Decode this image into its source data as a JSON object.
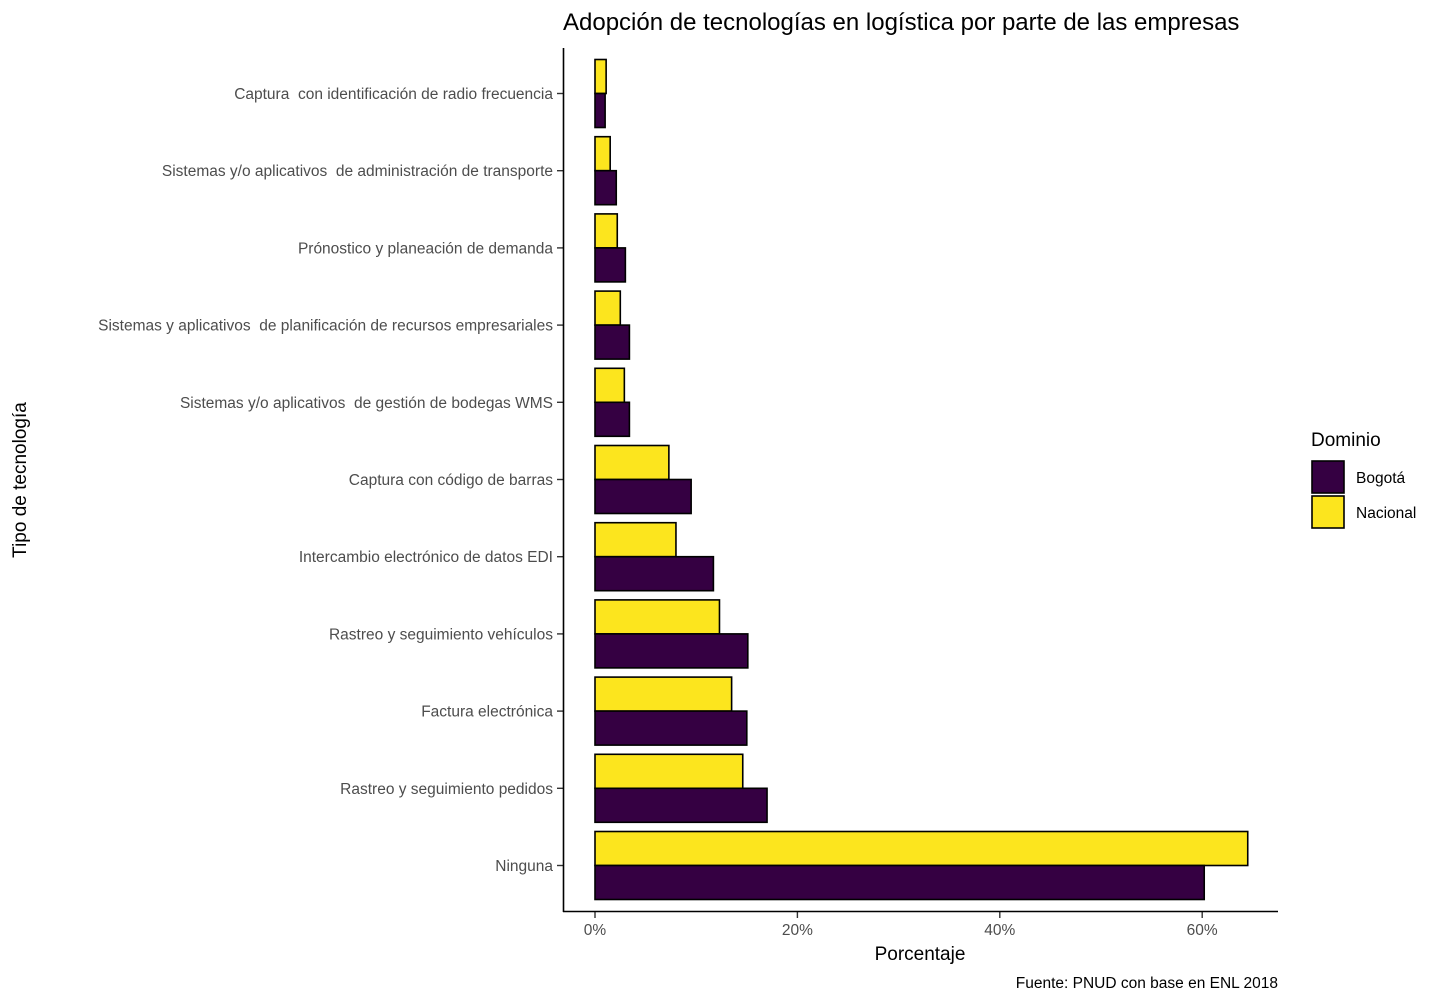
{
  "chart_data": {
    "type": "bar",
    "orientation": "horizontal",
    "title": "Adopción de tecnologías en logística por parte de las empresas",
    "xlabel": "Porcentaje",
    "ylabel": "Tipo de tecnología",
    "caption": "Fuente: PNUD con base en ENL 2018",
    "xlim": [
      0,
      67.5
    ],
    "x_ticks": [
      0,
      20,
      40,
      60
    ],
    "x_tick_labels": [
      "0%",
      "20%",
      "40%",
      "60%"
    ],
    "grid": false,
    "legend": {
      "title": "Dominio",
      "position": "right",
      "entries": [
        "Bogotá",
        "Nacional"
      ]
    },
    "categories": [
      "Captura  con identificación de radio frecuencia",
      "Sistemas y/o aplicativos  de administración de transporte",
      "Prónostico y planeación de demanda",
      "Sistemas y aplicativos  de planificación de recursos empresariales",
      "Sistemas y/o aplicativos  de gestión de bodegas WMS",
      "Captura con código de barras",
      "Intercambio electrónico de datos EDI",
      "Rastreo y seguimiento vehículos",
      "Factura electrónica",
      "Rastreo y seguimiento pedidos",
      "Ninguna"
    ],
    "series": [
      {
        "name": "Bogotá",
        "color": "#350042",
        "values": [
          1.0,
          2.1,
          3.0,
          3.4,
          3.4,
          9.5,
          11.7,
          15.1,
          15.0,
          17.0,
          60.2
        ]
      },
      {
        "name": "Nacional",
        "color": "#FCE51E",
        "values": [
          1.1,
          1.5,
          2.2,
          2.5,
          2.9,
          7.3,
          8.0,
          12.3,
          13.5,
          14.6,
          64.5
        ]
      }
    ]
  }
}
